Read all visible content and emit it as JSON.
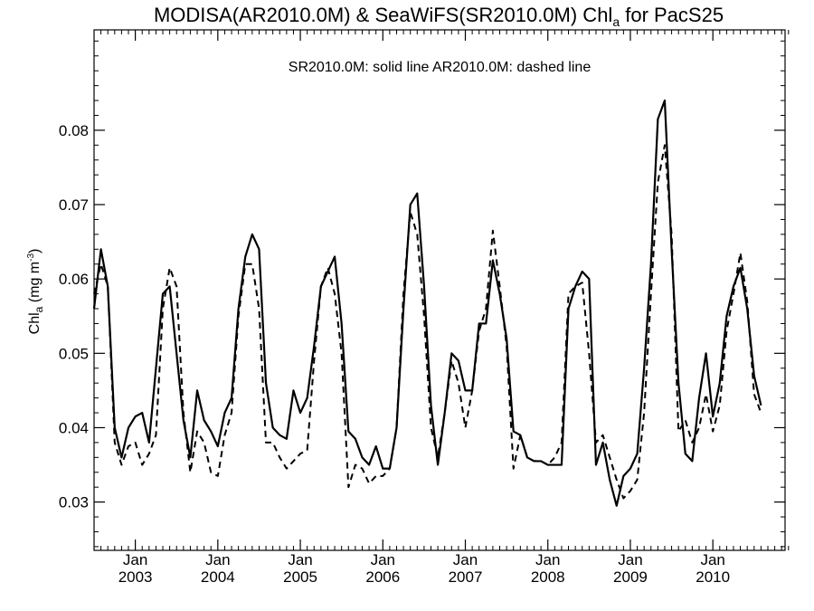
{
  "chart_data": {
    "type": "line",
    "title": {
      "part1": "MODISA(AR2010.0M) & SeaWiFS(SR2010.0M)  Chl",
      "sub": "a",
      "part2": " for PacS25"
    },
    "legend_text": "SR2010.0M: solid line   AR2010.0M: dashed line",
    "ylabel": {
      "main": "Chl",
      "sub": "a",
      "unit_open": " (mg m",
      "unit_sup": "-3",
      "unit_close": ")"
    },
    "ylim": [
      0.0235,
      0.0935
    ],
    "xlim": [
      2002.5,
      2010.875
    ],
    "yticks": [
      0.03,
      0.04,
      0.05,
      0.06,
      0.07,
      0.08
    ],
    "ytick_labels": [
      "0.03",
      "0.04",
      "0.05",
      "0.06",
      "0.07",
      "0.08"
    ],
    "xticks": [
      2003.0,
      2004.0,
      2005.0,
      2006.0,
      2007.0,
      2008.0,
      2009.0,
      2010.0
    ],
    "xtick_top_labels": [
      "Jan",
      "Jan",
      "Jan",
      "Jan",
      "Jan",
      "Jan",
      "Jan",
      "Jan"
    ],
    "xtick_bottom_labels": [
      "2003",
      "2004",
      "2005",
      "2006",
      "2007",
      "2008",
      "2009",
      "2010"
    ],
    "x_start": 2002.5,
    "x_step": 0.08333333,
    "series": [
      {
        "name": "SR2010.0M",
        "style": "solid",
        "values": [
          0.056,
          0.064,
          0.059,
          0.04,
          0.036,
          0.04,
          0.0415,
          0.042,
          0.038,
          0.048,
          0.058,
          0.059,
          0.05,
          0.041,
          0.036,
          0.045,
          0.041,
          0.0395,
          0.0375,
          0.042,
          0.044,
          0.056,
          0.063,
          0.066,
          0.064,
          0.046,
          0.04,
          0.039,
          0.0385,
          0.045,
          0.042,
          0.044,
          0.051,
          0.059,
          0.061,
          0.063,
          0.054,
          0.0395,
          0.0385,
          0.036,
          0.035,
          0.0375,
          0.0345,
          0.0345,
          0.04,
          0.056,
          0.07,
          0.0715,
          0.059,
          0.043,
          0.035,
          0.042,
          0.05,
          0.049,
          0.045,
          0.045,
          0.054,
          0.054,
          0.0625,
          0.058,
          0.052,
          0.0395,
          0.039,
          0.036,
          0.0355,
          0.0355,
          0.035,
          0.035,
          0.035,
          0.056,
          0.059,
          0.061,
          0.06,
          0.035,
          0.038,
          0.033,
          0.0295,
          0.0335,
          0.0345,
          0.0365,
          0.048,
          0.062,
          0.0815,
          0.084,
          0.064,
          0.046,
          0.0365,
          0.0355,
          0.044,
          0.05,
          0.0415,
          0.046,
          0.055,
          0.059,
          0.0615,
          0.056,
          0.047,
          0.043
        ]
      },
      {
        "name": "AR2010.0M",
        "style": "dashed",
        "values": [
          0.058,
          0.062,
          0.059,
          0.038,
          0.035,
          0.0375,
          0.038,
          0.035,
          0.0365,
          0.039,
          0.056,
          0.0615,
          0.059,
          0.042,
          0.034,
          0.0395,
          0.038,
          0.034,
          0.0335,
          0.039,
          0.042,
          0.055,
          0.062,
          0.062,
          0.056,
          0.038,
          0.038,
          0.036,
          0.0345,
          0.0355,
          0.0365,
          0.037,
          0.049,
          0.059,
          0.0615,
          0.058,
          0.05,
          0.032,
          0.035,
          0.0345,
          0.0325,
          0.0335,
          0.0335,
          0.0345,
          0.04,
          0.058,
          0.069,
          0.066,
          0.055,
          0.04,
          0.036,
          0.042,
          0.049,
          0.046,
          0.04,
          0.045,
          0.053,
          0.056,
          0.0665,
          0.059,
          0.051,
          0.0345,
          0.039,
          0.036,
          0.0355,
          0.0355,
          0.035,
          0.036,
          0.038,
          0.058,
          0.059,
          0.0595,
          0.05,
          0.038,
          0.039,
          0.036,
          0.033,
          0.0305,
          0.0315,
          0.033,
          0.042,
          0.058,
          0.073,
          0.078,
          0.066,
          0.0395,
          0.041,
          0.038,
          0.04,
          0.0445,
          0.0395,
          0.043,
          0.053,
          0.058,
          0.0635,
          0.057,
          0.0445,
          0.042
        ]
      }
    ],
    "grid": false,
    "legend_placement": "top-center"
  }
}
